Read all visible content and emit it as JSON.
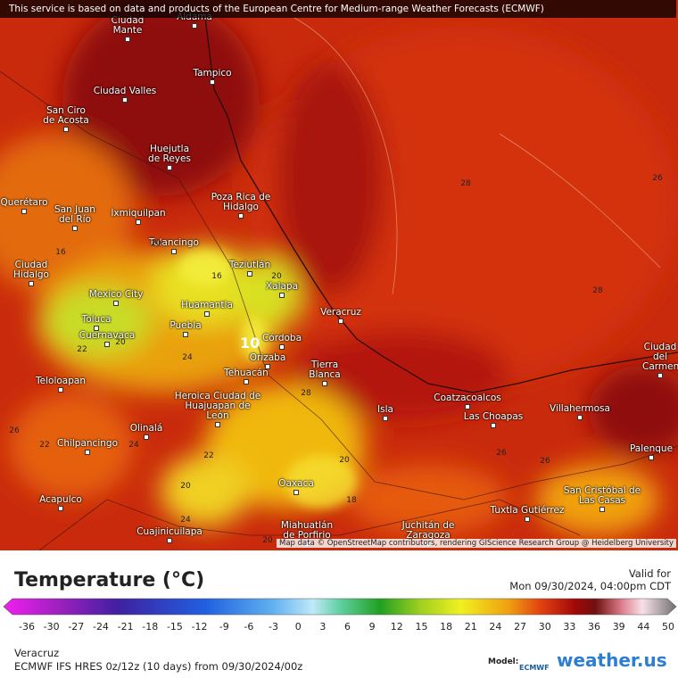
{
  "header": {
    "notice": "This service is based on data and products of the European Centre for Medium-range Weather Forecasts (ECMWF)"
  },
  "map": {
    "cities": [
      "Aldama",
      "Ciudad Mante",
      "Tampico",
      "Ciudad Valles",
      "San Ciro de Acosta",
      "Huejutla de Reyes",
      "Poza Rica de Hidalgo",
      "Querétaro",
      "San Juan del Río",
      "Ixmiquilpan",
      "Tulancingo",
      "Ciudad Hidalgo",
      "Teziutlán",
      "Xalapa",
      "Mexico City",
      "Huamantla",
      "Veracruz",
      "Toluca",
      "Puebla",
      "Cuernavaca",
      "Córdoba",
      "Orizaba",
      "Tierra Blanca",
      "Tehuacán",
      "Teloloapan",
      "Heroica Ciudad de Huajuapan de León",
      "Coatzacoalcos",
      "Isla",
      "Las Choapas",
      "Villahermosa",
      "Ciudad del Carmen",
      "Olinalá",
      "Chilpancingo",
      "Palenque",
      "Oaxaca",
      "Acapulco",
      "San Cristóbal de Las Casas",
      "Tuxtla Gutiérrez",
      "Miahuatlán de Porfirio",
      "Juchitán de Zaragoza",
      "Cuajinicuilapa"
    ],
    "contour_labels": [
      16,
      20,
      16,
      20,
      10,
      22,
      20,
      24,
      28,
      26,
      22,
      24,
      22,
      20,
      24,
      20,
      18,
      20,
      26,
      28,
      28,
      26,
      26
    ],
    "attribution": "Map data © OpenStreetMap contributors, rendering GIScience Research Group @ Heidelberg University"
  },
  "legend": {
    "title": "Temperature (°C)",
    "ticks": [
      -36,
      -30,
      -27,
      -24,
      -21,
      -18,
      -15,
      -12,
      -9,
      -6,
      -3,
      0,
      3,
      6,
      9,
      12,
      15,
      18,
      21,
      24,
      27,
      30,
      33,
      36,
      39,
      44,
      50
    ]
  },
  "valid": {
    "label": "Valid for",
    "time": "Mon 09/30/2024, 04:00pm CDT"
  },
  "footer": {
    "location": "Veracruz",
    "model_run": "ECMWF IFS HRES 0z/12z (10 days) from 09/30/2024/00z",
    "model_label": "Model:",
    "model": "ECMWF",
    "brand": "weather.us"
  }
}
